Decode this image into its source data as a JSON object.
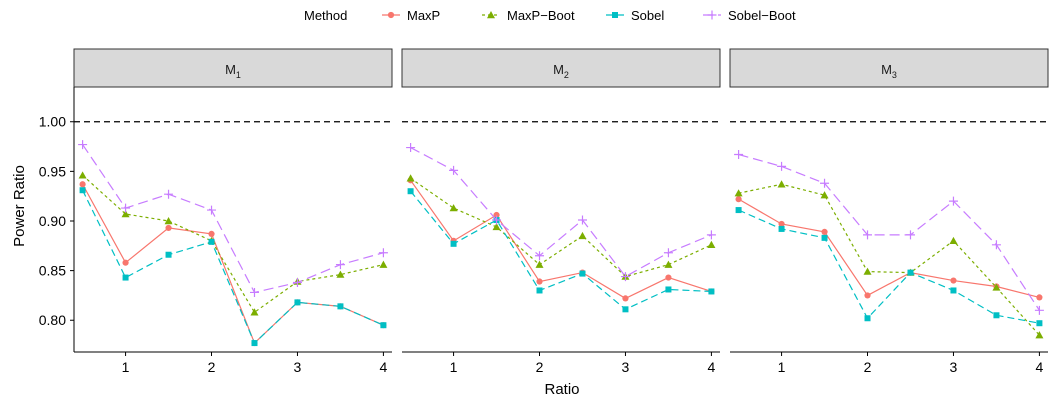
{
  "chart_data": {
    "type": "line",
    "xlabel": "Ratio",
    "ylabel": "Power Ratio",
    "ylim": [
      0.768,
      1.035
    ],
    "xlim": [
      0.4,
      4.1
    ],
    "x": [
      0.5,
      1,
      1.5,
      2,
      2.5,
      3,
      3.5,
      4
    ],
    "x_ticks": [
      "1",
      "2",
      "3",
      "4"
    ],
    "y_ticks": [
      "0.80",
      "0.85",
      "0.90",
      "0.95",
      "1.00"
    ],
    "reference_line": 1.0,
    "legend": {
      "title": "Method",
      "placement": "top",
      "entries": [
        "MaxP",
        "MaxP−Boot",
        "Sobel",
        "Sobel−Boot"
      ]
    },
    "colors": {
      "MaxP": "#F8766D",
      "MaxP−Boot": "#7CAE00",
      "Sobel": "#00BFC4",
      "Sobel−Boot": "#C77CFF"
    },
    "panels": [
      {
        "label": "M",
        "sub": "1",
        "series": [
          {
            "name": "MaxP",
            "values": [
              0.937,
              0.858,
              0.893,
              0.887,
              0.777,
              0.818,
              0.814,
              0.795
            ]
          },
          {
            "name": "MaxP−Boot",
            "values": [
              0.946,
              0.907,
              0.9,
              0.88,
              0.808,
              0.839,
              0.846,
              0.856
            ]
          },
          {
            "name": "Sobel",
            "values": [
              0.931,
              0.843,
              0.866,
              0.879,
              0.777,
              0.818,
              0.814,
              0.795
            ]
          },
          {
            "name": "Sobel−Boot",
            "values": [
              0.977,
              0.913,
              0.927,
              0.911,
              0.828,
              0.838,
              0.856,
              0.868
            ]
          }
        ]
      },
      {
        "label": "M",
        "sub": "2",
        "series": [
          {
            "name": "MaxP",
            "values": [
              0.941,
              0.88,
              0.906,
              0.839,
              0.848,
              0.822,
              0.843,
              0.829
            ]
          },
          {
            "name": "MaxP−Boot",
            "values": [
              0.943,
              0.913,
              0.894,
              0.856,
              0.885,
              0.844,
              0.856,
              0.876
            ]
          },
          {
            "name": "Sobel",
            "values": [
              0.93,
              0.877,
              0.901,
              0.83,
              0.847,
              0.811,
              0.831,
              0.829
            ]
          },
          {
            "name": "Sobel−Boot",
            "values": [
              0.974,
              0.951,
              0.901,
              0.865,
              0.901,
              0.844,
              0.868,
              0.886
            ]
          }
        ]
      },
      {
        "label": "M",
        "sub": "3",
        "series": [
          {
            "name": "MaxP",
            "values": [
              0.922,
              0.897,
              0.889,
              0.825,
              0.848,
              0.84,
              0.834,
              0.823
            ]
          },
          {
            "name": "MaxP−Boot",
            "values": [
              0.928,
              0.937,
              0.926,
              0.849,
              0.848,
              0.88,
              0.833,
              0.785
            ]
          },
          {
            "name": "Sobel",
            "values": [
              0.911,
              0.892,
              0.883,
              0.802,
              0.848,
              0.83,
              0.805,
              0.797
            ]
          },
          {
            "name": "Sobel−Boot",
            "values": [
              0.967,
              0.955,
              0.938,
              0.886,
              0.886,
              0.92,
              0.876,
              0.81
            ]
          }
        ]
      }
    ]
  }
}
